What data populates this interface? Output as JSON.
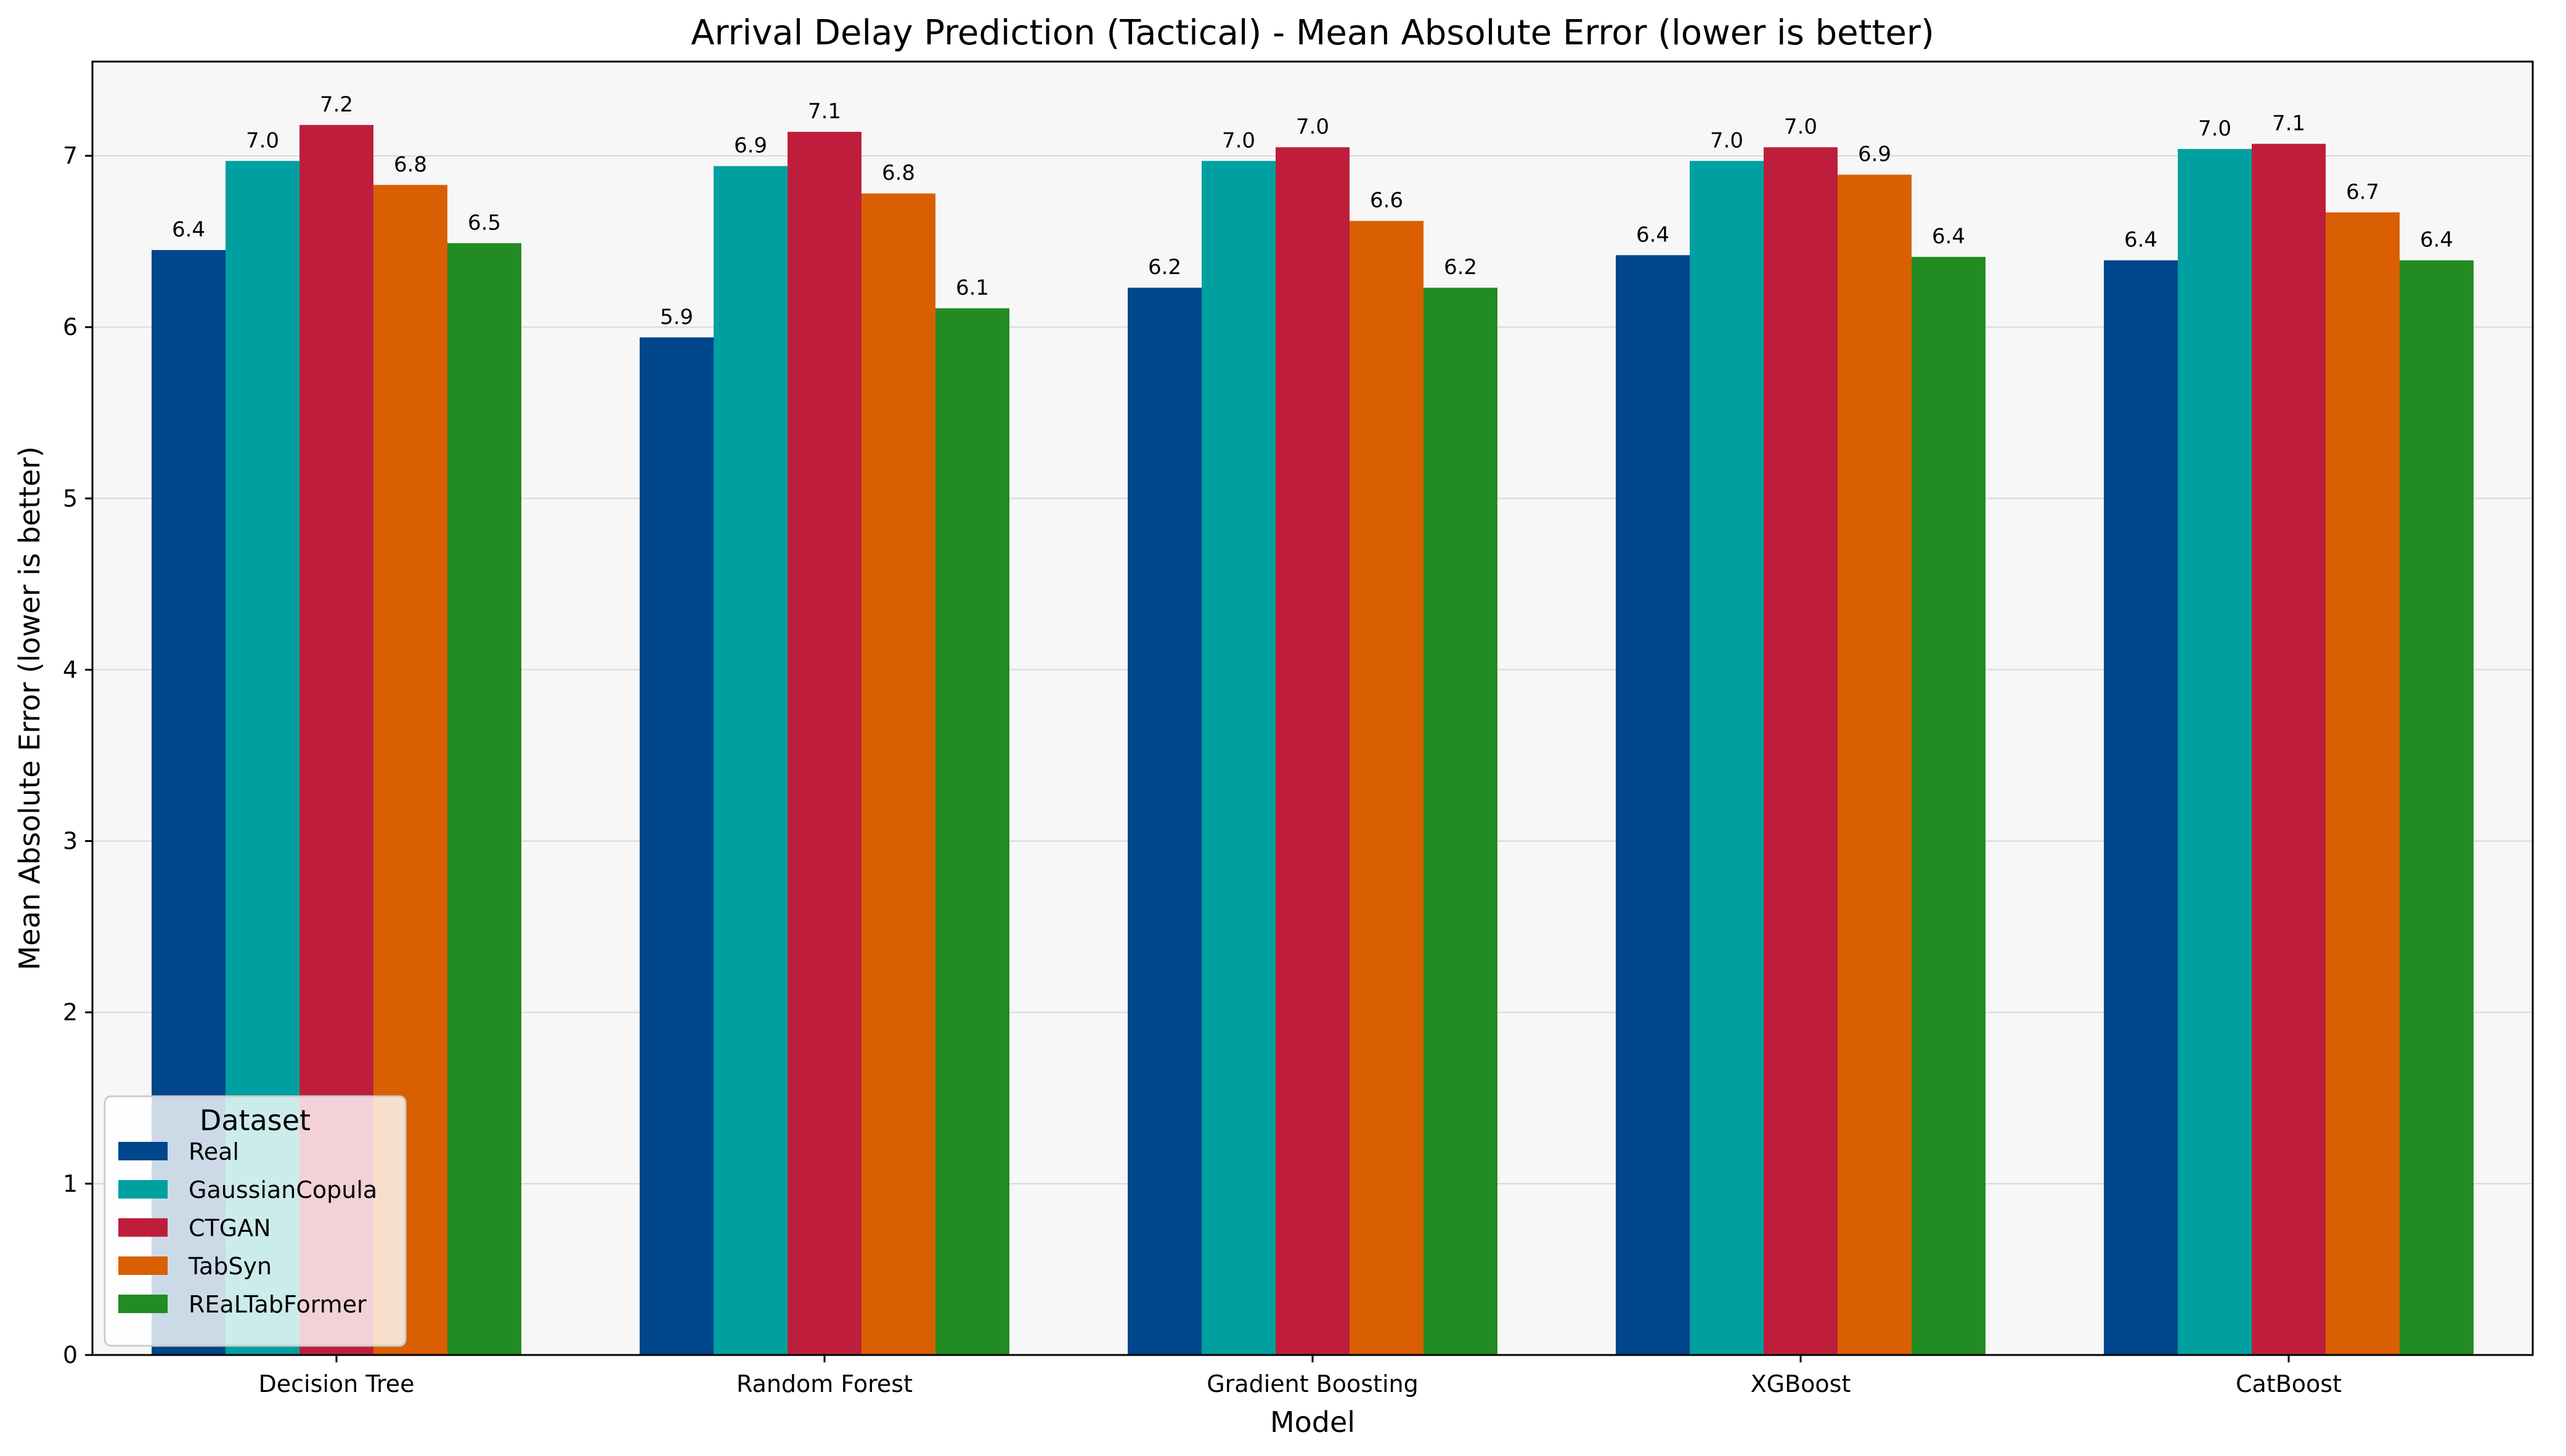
{
  "chart_data": {
    "type": "bar",
    "title": "Arrival Delay Prediction (Tactical) - Mean Absolute Error (lower is better)",
    "xlabel": "Model",
    "ylabel": "Mean Absolute Error (lower is better)",
    "ylim": [
      0,
      7.55
    ],
    "yticks": [
      0,
      1,
      2,
      3,
      4,
      5,
      6,
      7
    ],
    "grid": true,
    "legend_title": "Dataset",
    "legend_position": "lower-left",
    "categories": [
      "Decision Tree",
      "Random Forest",
      "Gradient Boosting",
      "XGBoost",
      "CatBoost"
    ],
    "series": [
      {
        "name": "Real",
        "color": "#00468B",
        "values": [
          6.45,
          5.94,
          6.23,
          6.42,
          6.39
        ],
        "labels": [
          "6.4",
          "5.9",
          "6.2",
          "6.4",
          "6.4"
        ]
      },
      {
        "name": "GaussianCopula",
        "color": "#00A0A0",
        "values": [
          6.97,
          6.94,
          6.97,
          6.97,
          7.04
        ],
        "labels": [
          "7.0",
          "6.9",
          "7.0",
          "7.0",
          "7.0"
        ]
      },
      {
        "name": "CTGAN",
        "color": "#BE1E3C",
        "values": [
          7.18,
          7.14,
          7.05,
          7.05,
          7.07
        ],
        "labels": [
          "7.2",
          "7.1",
          "7.0",
          "7.0",
          "7.1"
        ]
      },
      {
        "name": "TabSyn",
        "color": "#D95F02",
        "values": [
          6.83,
          6.78,
          6.62,
          6.89,
          6.67
        ],
        "labels": [
          "6.8",
          "6.8",
          "6.6",
          "6.9",
          "6.7"
        ]
      },
      {
        "name": "REaLTabFormer",
        "color": "#228B22",
        "values": [
          6.49,
          6.11,
          6.23,
          6.41,
          6.39
        ],
        "labels": [
          "6.5",
          "6.1",
          "6.2",
          "6.4",
          "6.4"
        ]
      }
    ]
  }
}
